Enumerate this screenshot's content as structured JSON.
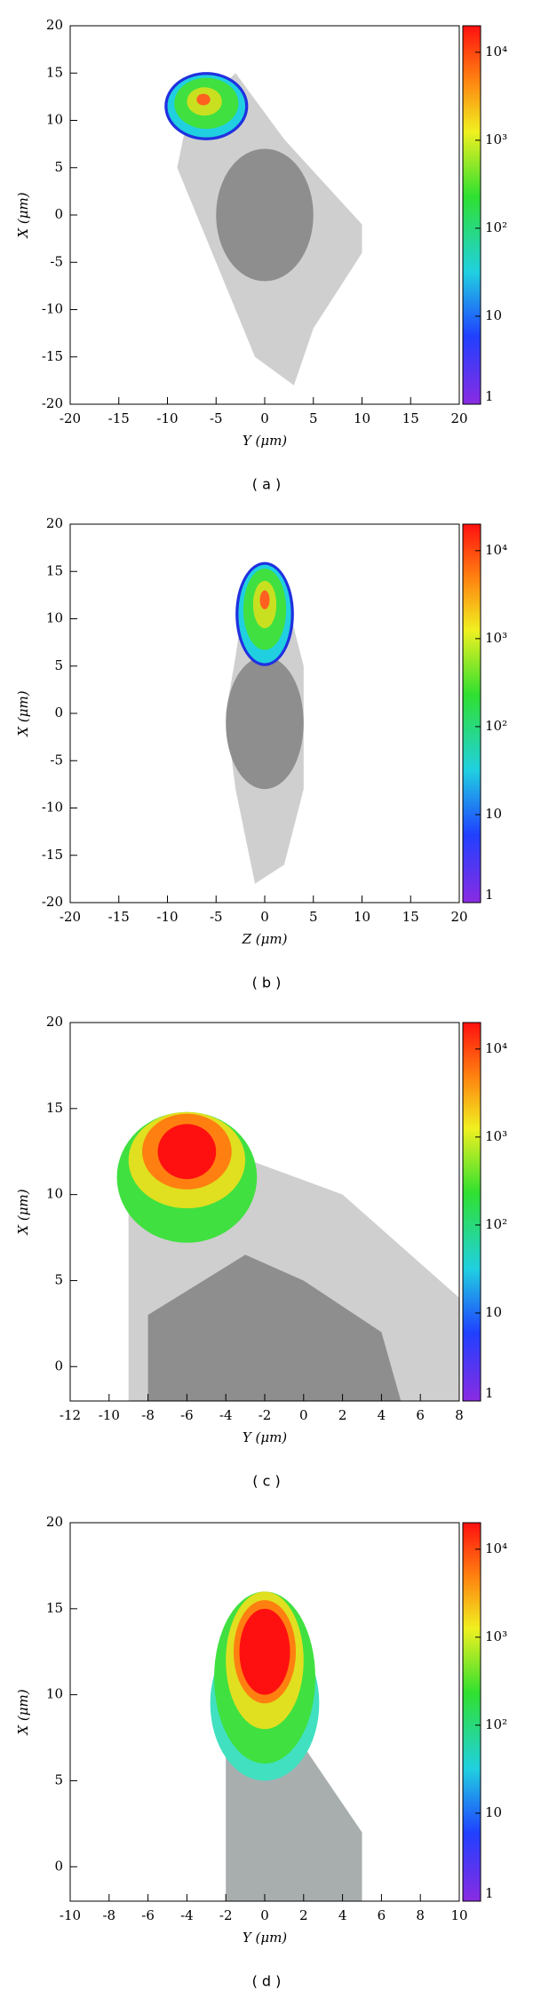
{
  "chart_data": [
    {
      "type": "heatmap",
      "caption": "( a )",
      "xlabel": "Y (μm)",
      "ylabel": "X (μm)",
      "xlim": [
        -20,
        20
      ],
      "xticks": [
        -20,
        -15,
        -10,
        -5,
        0,
        5,
        10,
        15,
        20
      ],
      "ylim": [
        -20,
        20
      ],
      "yticks": [
        -20,
        -15,
        -10,
        -5,
        0,
        5,
        10,
        15,
        20
      ],
      "zlim": [
        1,
        20000
      ],
      "log_z": true,
      "zticks": [
        1,
        10,
        {
          "value": 100,
          "label": "10²"
        },
        {
          "value": 1000,
          "label": "10³"
        },
        {
          "value": 10000,
          "label": "10⁴"
        }
      ]
    },
    {
      "type": "heatmap",
      "caption": "( b )",
      "xlabel": "Z (μm)",
      "ylabel": "X (μm)",
      "xlim": [
        -20,
        20
      ],
      "xticks": [
        -20,
        -15,
        -10,
        -5,
        0,
        5,
        10,
        15,
        20
      ],
      "ylim": [
        -20,
        20
      ],
      "yticks": [
        -20,
        -15,
        -10,
        -5,
        0,
        5,
        10,
        15,
        20
      ],
      "zlim": [
        1,
        20000
      ],
      "log_z": true,
      "zticks": [
        1,
        10,
        {
          "value": 100,
          "label": "10²"
        },
        {
          "value": 1000,
          "label": "10³"
        },
        {
          "value": 10000,
          "label": "10⁴"
        }
      ]
    },
    {
      "type": "heatmap",
      "caption": "( c )",
      "xlabel": "Y (μm)",
      "ylabel": "X (μm)",
      "xlim": [
        -12,
        8
      ],
      "xticks": [
        -12,
        -10,
        -8,
        -6,
        -4,
        -2,
        0,
        2,
        4,
        6,
        8
      ],
      "ylim": [
        -2,
        20
      ],
      "yticks": [
        0,
        5,
        10,
        15,
        20
      ],
      "zlim": [
        1,
        20000
      ],
      "log_z": true,
      "zticks": [
        1,
        10,
        {
          "value": 100,
          "label": "10²"
        },
        {
          "value": 1000,
          "label": "10³"
        },
        {
          "value": 10000,
          "label": "10⁴"
        }
      ]
    },
    {
      "type": "heatmap",
      "caption": "( d )",
      "xlabel": "Y (μm)",
      "ylabel": "X (μm)",
      "xlim": [
        -10,
        10
      ],
      "xticks": [
        -10,
        -8,
        -6,
        -4,
        -2,
        0,
        2,
        4,
        6,
        8,
        10
      ],
      "ylim": [
        -2,
        20
      ],
      "yticks": [
        0,
        5,
        10,
        15,
        20
      ],
      "zlim": [
        1,
        20000
      ],
      "log_z": true,
      "zticks": [
        1,
        10,
        {
          "value": 100,
          "label": "10²"
        },
        {
          "value": 1000,
          "label": "10³"
        },
        {
          "value": 10000,
          "label": "10⁴"
        }
      ]
    }
  ]
}
